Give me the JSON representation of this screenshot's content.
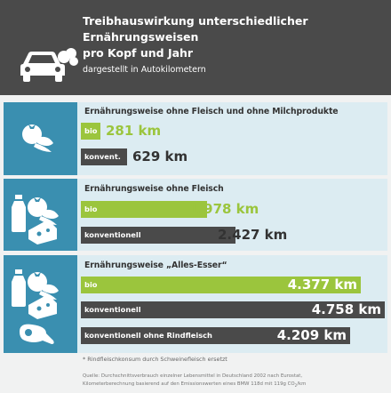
{
  "header": {
    "title_line1": "Treibhauswirkung unterschiedlicher Ernährungsweisen",
    "title_line2": "pro Kopf und Jahr",
    "subtitle": "dargestellt in Autokilometern"
  },
  "colors": {
    "bio": "#9bc53d",
    "conventional": "#4a4a4a",
    "icon_panel": "#3a8fb0",
    "section_bg": "#dcecf2",
    "header_bg": "#4a4a4a"
  },
  "chart_data": {
    "type": "bar",
    "unit": "km",
    "xlim": [
      0,
      4758
    ],
    "groups": [
      {
        "title": "Ernährungsweise ohne Fleisch und ohne Milchprodukte",
        "icons": [
          "vegetables-icon"
        ],
        "bars": [
          {
            "label": "bio",
            "kind": "bio",
            "value": 281,
            "value_label": "281 km"
          },
          {
            "label": "konvent.",
            "kind": "conv",
            "value": 629,
            "value_label": "629 km"
          }
        ]
      },
      {
        "title": "Ernährungsweise ohne Fleisch",
        "icons": [
          "milk-bottle-icon",
          "vegetables-icon",
          "cheese-icon"
        ],
        "bars": [
          {
            "label": "bio",
            "kind": "bio",
            "value": 1978,
            "value_label": "1.978 km"
          },
          {
            "label": "konventionell",
            "kind": "conv",
            "value": 2427,
            "value_label": "2.427 km"
          }
        ]
      },
      {
        "title": "Ernährungsweise „Alles-Esser“",
        "icons": [
          "milk-bottle-icon",
          "vegetables-icon",
          "cheese-icon",
          "ham-icon"
        ],
        "bars": [
          {
            "label": "bio",
            "kind": "bio",
            "value": 4377,
            "value_label": "4.377 km"
          },
          {
            "label": "konventionell",
            "kind": "conv",
            "value": 4758,
            "value_label": "4.758 km"
          },
          {
            "label": "konventionell ohne Rindfleisch",
            "kind": "conv",
            "value": 4209,
            "value_label": "4.209 km"
          }
        ]
      }
    ]
  },
  "footnote": "* Rindfleischkonsum durch Schweinefleisch ersetzt",
  "source_line1": "Quelle: Durchschnittsverbrauch einzelner Lebensmittel in Deutschland 2002 nach Eurostat,",
  "source_line2": "Kilometerberechnung basierend auf den Emissionswerten eines BMW 118d mit 119g CO",
  "source_sub": "2",
  "source_end": "/km"
}
